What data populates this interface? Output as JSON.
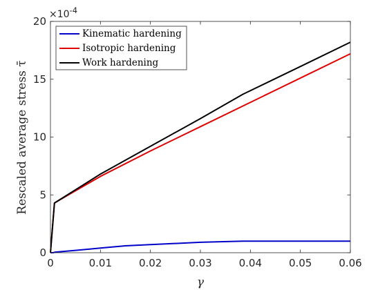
{
  "chart_data": {
    "type": "line",
    "xlabel": "γ",
    "ylabel": "Rescaled average stress τ̄",
    "xlim": [
      0,
      0.06
    ],
    "ylim": [
      0,
      20
    ],
    "x_ticks": [
      0,
      0.01,
      0.02,
      0.03,
      0.04,
      0.05,
      0.06
    ],
    "x_tick_labels": [
      "0",
      "0.01",
      "0.02",
      "0.03",
      "0.04",
      "0.05",
      "0.06"
    ],
    "y_ticks": [
      0,
      5,
      10,
      15,
      20
    ],
    "y_tick_labels": [
      "0",
      "5",
      "10",
      "15",
      "20"
    ],
    "y_exponent": {
      "base": "×10",
      "power": "-4"
    },
    "legend_position": "top-left",
    "grid": false,
    "series": [
      {
        "name": "Kinematic hardening",
        "color": "#0000c8",
        "x": [
          0,
          0.0005,
          0.001,
          0.005,
          0.01,
          0.015,
          0.02,
          0.03,
          0.0385,
          0.04,
          0.05,
          0.06
        ],
        "y": [
          0,
          0,
          0.05,
          0.2,
          0.4,
          0.6,
          0.7,
          0.9,
          1.0,
          1.0,
          1.0,
          1.0
        ]
      },
      {
        "name": "Isotropic hardening",
        "color": "#e00000",
        "x": [
          0,
          0.0008,
          0.001,
          0.01,
          0.02,
          0.03,
          0.04,
          0.05,
          0.06
        ],
        "y": [
          0,
          4.3,
          4.35,
          6.6,
          8.8,
          10.9,
          13.0,
          15.1,
          17.2
        ]
      },
      {
        "name": "Work hardening",
        "color": "#000000",
        "x": [
          0,
          0.0008,
          0.001,
          0.01,
          0.02,
          0.03,
          0.0385,
          0.05,
          0.06
        ],
        "y": [
          0,
          4.3,
          4.35,
          6.8,
          9.2,
          11.6,
          13.7,
          16.1,
          18.2
        ]
      }
    ]
  }
}
